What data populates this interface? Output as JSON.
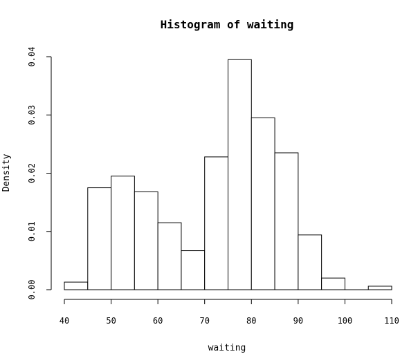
{
  "chart_data": {
    "type": "bar",
    "title": "Histogram of waiting",
    "xlabel": "waiting",
    "ylabel": "Density",
    "bins": [
      {
        "start": 40,
        "end": 45,
        "density": 0.0013
      },
      {
        "start": 45,
        "end": 50,
        "density": 0.0175
      },
      {
        "start": 50,
        "end": 55,
        "density": 0.0195
      },
      {
        "start": 55,
        "end": 60,
        "density": 0.0168
      },
      {
        "start": 60,
        "end": 65,
        "density": 0.0115
      },
      {
        "start": 65,
        "end": 70,
        "density": 0.0067
      },
      {
        "start": 70,
        "end": 75,
        "density": 0.0228
      },
      {
        "start": 75,
        "end": 80,
        "density": 0.0395
      },
      {
        "start": 80,
        "end": 85,
        "density": 0.0295
      },
      {
        "start": 85,
        "end": 90,
        "density": 0.0235
      },
      {
        "start": 90,
        "end": 95,
        "density": 0.0094
      },
      {
        "start": 95,
        "end": 100,
        "density": 0.002
      },
      {
        "start": 100,
        "end": 105,
        "density": 0
      },
      {
        "start": 105,
        "end": 110,
        "density": 0.0006
      }
    ],
    "xlim": [
      40,
      110
    ],
    "ylim": [
      0,
      0.04
    ],
    "xticks": [
      40,
      50,
      60,
      70,
      80,
      90,
      100,
      110
    ],
    "yticks": [
      "0.00",
      "0.01",
      "0.02",
      "0.03",
      "0.04"
    ],
    "grid": false,
    "legend": "none",
    "colors": {
      "bar_fill": "#ffffff",
      "bar_stroke": "#000000"
    }
  }
}
